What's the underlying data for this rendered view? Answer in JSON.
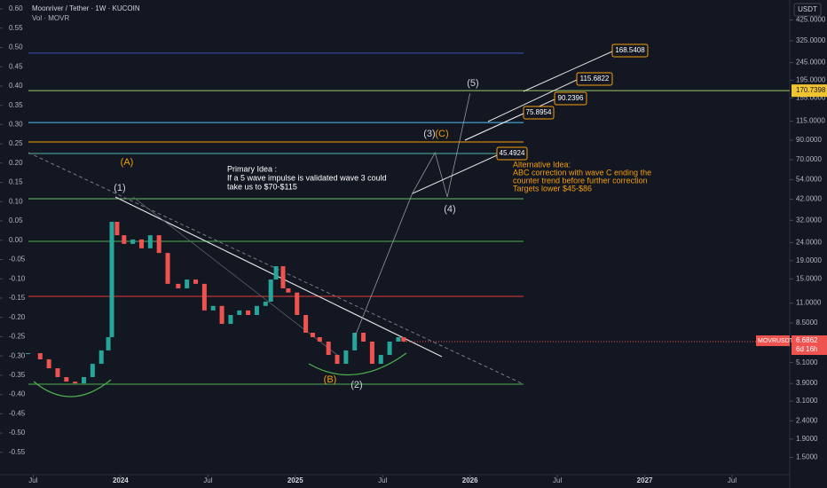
{
  "chart_data": {
    "type": "candlestick",
    "title": "Moonriver / Tether · 1W · KUCOIN",
    "subtitle": "Vol · MOVR",
    "currency": "USDT",
    "log_scale": true,
    "grid": false,
    "up_color": "#26a69a",
    "down_color": "#ef5350",
    "xlim": [
      2023.31,
      2027.83
    ],
    "xticks": [
      {
        "value": 2023.5,
        "label": "Jul"
      },
      2024,
      {
        "value": 2024.5,
        "label": "Jul"
      },
      2025,
      {
        "value": 2025.5,
        "label": "Jul"
      },
      2026,
      {
        "value": 2026.5,
        "label": "Jul"
      },
      2027,
      {
        "value": 2027.5,
        "label": "Jul"
      }
    ],
    "ylim": [
      1.2,
      550
    ],
    "yticks": [
      {
        "value": 1.5,
        "label": "1.5000"
      },
      {
        "value": 1.9,
        "label": "1.9000"
      },
      {
        "value": 2.4,
        "label": "2.4000"
      },
      {
        "value": 3.1,
        "label": "3.1000"
      },
      {
        "value": 3.9,
        "label": "3.9000"
      },
      {
        "value": 5.1,
        "label": "5.1000"
      },
      {
        "value": 8.5,
        "label": "8.5000"
      },
      {
        "value": 11,
        "label": "11.0000"
      },
      {
        "value": 15,
        "label": "15.0000"
      },
      {
        "value": 19,
        "label": "19.0000"
      },
      {
        "value": 24,
        "label": "24.0000"
      },
      {
        "value": 32,
        "label": "32.0000"
      },
      {
        "value": 42,
        "label": "42.0000"
      },
      {
        "value": 54,
        "label": "54.0000"
      },
      {
        "value": 70,
        "label": "70.0000"
      },
      {
        "value": 90,
        "label": "90.0000"
      },
      {
        "value": 115,
        "label": "115.0000"
      },
      {
        "value": 155,
        "label": "155.0000"
      },
      {
        "value": 195,
        "label": "195.0000"
      },
      {
        "value": 245,
        "label": "245.0000"
      },
      {
        "value": 325,
        "label": "325.0000"
      },
      {
        "value": 425,
        "label": "425.0000"
      }
    ],
    "y2lim": [
      -0.608,
      0.623
    ],
    "y2ticks": [
      {
        "value": 0.6,
        "label": "0.60"
      },
      0.55,
      {
        "value": 0.5,
        "label": "0.50"
      },
      0.45,
      {
        "value": 0.4,
        "label": "0.40"
      },
      0.35,
      {
        "value": 0.3,
        "label": "0.30"
      },
      0.25,
      {
        "value": 0.2,
        "label": "0.20"
      },
      0.15,
      {
        "value": 0.1,
        "label": "0.10"
      },
      0.05,
      {
        "value": 0,
        "label": "0.00"
      },
      -0.05,
      {
        "value": -0.1,
        "label": "-0.10"
      },
      -0.15,
      {
        "value": -0.2,
        "label": "-0.20"
      },
      -0.25,
      {
        "value": -0.3,
        "label": "-0.30"
      },
      -0.35,
      {
        "value": -0.4,
        "label": "-0.40"
      },
      -0.45,
      {
        "value": -0.5,
        "label": "-0.50"
      },
      -0.55
    ],
    "x": [
      2023.47,
      2023.54,
      2023.59,
      2023.64,
      2023.69,
      2023.74,
      2023.79,
      2023.84,
      2023.89,
      2023.93,
      2023.95,
      2023.98,
      2024.02,
      2024.07,
      2024.12,
      2024.17,
      2024.22,
      2024.27,
      2024.33,
      2024.38,
      2024.43,
      2024.48,
      2024.53,
      2024.58,
      2024.63,
      2024.68,
      2024.73,
      2024.78,
      2024.83,
      2024.86,
      2024.89,
      2024.93,
      2024.96,
      2025.01,
      2025.06,
      2025.1,
      2025.14,
      2025.19,
      2025.24,
      2025.29,
      2025.34,
      2025.39,
      2025.44,
      2025.49,
      2025.54,
      2025.59,
      2025.62
    ],
    "values": [
      5.76,
      5.32,
      4.74,
      4.23,
      3.99,
      3.9,
      4.23,
      5.02,
      5.97,
      7.08,
      31.4,
      26.4,
      23.6,
      25.0,
      22.3,
      26.4,
      21.0,
      14.1,
      13.3,
      14.9,
      14.1,
      10.0,
      10.6,
      8.41,
      9.43,
      10.0,
      9.43,
      10.6,
      11.2,
      14.9,
      17.7,
      13.3,
      12.6,
      9.43,
      7.5,
      7.08,
      6.69,
      5.63,
      5.02,
      5.97,
      7.5,
      6.69,
      5.02,
      5.63,
      6.69,
      7.08,
      6.69
    ],
    "projection": {
      "x": [
        2025.34,
        2025.67,
        2025.8,
        2025.87,
        2026.0
      ],
      "values": [
        7.08,
        45.3,
        76.7,
        43.3,
        165
      ]
    },
    "levels": [
      {
        "value": 277,
        "color": "#3f51b5"
      },
      {
        "value": 113,
        "color": "#4fc3f7"
      },
      {
        "value": 88,
        "color": "#f59e0b"
      },
      {
        "value": 75.8,
        "color": "#4db6ac"
      },
      {
        "value": 42.3,
        "color": "#66bb6a"
      },
      {
        "value": 24.4,
        "color": "#4caf50"
      },
      {
        "value": 12.0,
        "color": "#e53935"
      },
      {
        "value": 3.86,
        "color": "#4caf50"
      }
    ],
    "highlight_level": 170.7398,
    "highlight_color": "#f0c330",
    "symbol": "MOVRUSDT",
    "last_price": 6.6862,
    "countdown": "6d 16h",
    "targets": [
      168.5408,
      115.6822,
      90.2396,
      75.8954,
      45.4924
    ],
    "waves": [
      "(A)",
      "(1)",
      "(B)",
      "(2)",
      "(3)",
      "(C)",
      "(4)",
      "(5)"
    ],
    "primary_idea": [
      "Primary Idea :",
      "If a 5 wave impulse is validated wave 3 could",
      "take us to $70-$115"
    ],
    "alternative_idea": [
      "Alternative Idea:",
      "ABC correction with wave C ending the",
      "counter trend before further correction",
      "Targets lower $45-$86"
    ]
  }
}
